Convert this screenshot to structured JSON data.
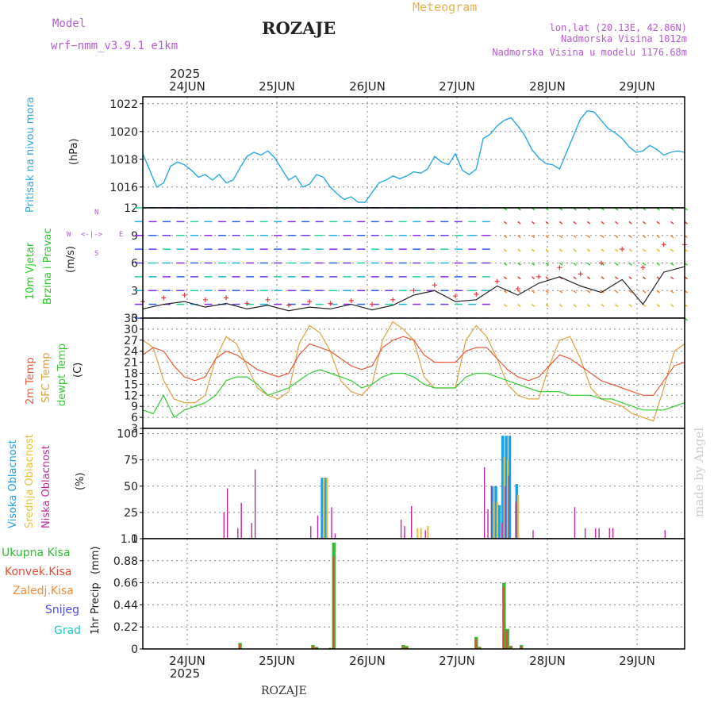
{
  "header": {
    "model_label": "Model",
    "model_name": "wrf−nmm_v3.9.1  e1km",
    "station": "ROZAJE",
    "product": "Meteogram",
    "coords": "lon,lat (20.13E, 42.86N)",
    "elevation": "Nadmorska Visina 1012m",
    "model_elevation": "Nadmorska Visina u modelu 1176.68m",
    "footer_station": "ROZAJE",
    "watermark": "made by Angel"
  },
  "colors": {
    "pressure": "#2aa7e6",
    "wind_speed": "#222222",
    "wind_gust": "#e83a3a",
    "temp_2m": "#e85a3a",
    "temp_sfc": "#e0a040",
    "dewpoint": "#33cc33",
    "cloud_high": "#1aa0e8",
    "cloud_mid": "#e8c040",
    "cloud_low": "#c02aa0",
    "precip_total": "#33bb33",
    "precip_conv": "#e84a3a",
    "precip_frz": "#f08a3a",
    "precip_snow": "#4a4ae8",
    "precip_grad": "#22c8c8",
    "label_purple": "#b45ad2"
  },
  "time_axis": {
    "year_top": "2025",
    "year_bottom": "2025",
    "days": [
      "24JUN",
      "25JUN",
      "26JUN",
      "27JUN",
      "28JUN",
      "29JUN"
    ],
    "start_hour": 0,
    "end_hour": 156
  },
  "chart_data": [
    {
      "type": "line",
      "title": "",
      "ylabel_1": "Pritisak na nivou mora",
      "ylabel_2": "(hPa)",
      "ylim": [
        1014.5,
        1022.5
      ],
      "yticks": [
        "1016",
        "1018",
        "1020",
        "1022"
      ],
      "grid": true,
      "series": [
        {
          "name": "Pritisak na nivou mora",
          "x": [
            0,
            2,
            4,
            6,
            8,
            10,
            12,
            14,
            16,
            18,
            20,
            22,
            24,
            26,
            28,
            30,
            32,
            34,
            36,
            38,
            40,
            42,
            44,
            46,
            48,
            50,
            52,
            54,
            56,
            58,
            60,
            62,
            64,
            66,
            68,
            70,
            72,
            74,
            76,
            78,
            80,
            82,
            84,
            86,
            88,
            90,
            92,
            94,
            96,
            98,
            100,
            102,
            104,
            106,
            108,
            110,
            112,
            114,
            116,
            118,
            120,
            122,
            124,
            126,
            128,
            130,
            132,
            134,
            136,
            138,
            140,
            142,
            144,
            146,
            148,
            150,
            152,
            154,
            156
          ],
          "values": [
            1018.4,
            1017.2,
            1016.0,
            1016.3,
            1017.5,
            1017.8,
            1017.6,
            1017.2,
            1016.7,
            1016.9,
            1016.5,
            1016.9,
            1016.3,
            1016.5,
            1017.4,
            1018.2,
            1018.5,
            1018.3,
            1018.6,
            1018.1,
            1017.3,
            1016.5,
            1016.8,
            1016.0,
            1016.2,
            1016.9,
            1016.7,
            1016.0,
            1015.5,
            1015.1,
            1015.3,
            1014.9,
            1014.9,
            1015.6,
            1016.3,
            1016.5,
            1016.8,
            1016.6,
            1016.8,
            1017.1,
            1017.0,
            1017.3,
            1018.2,
            1017.8,
            1017.6,
            1018.4,
            1017.2,
            1016.9,
            1017.3,
            1019.5,
            1019.8,
            1020.4,
            1020.8,
            1021.0,
            1020.4,
            1019.7,
            1018.7,
            1018.1,
            1017.7,
            1017.6,
            1017.3,
            1018.5,
            1019.7,
            1020.9,
            1021.5,
            1021.4,
            1020.8,
            1020.2,
            1019.9,
            1019.5,
            1018.9,
            1018.5,
            1018.6,
            1019.0,
            1018.7,
            1018.3,
            1018.5,
            1018.6,
            1018.5
          ]
        }
      ]
    },
    {
      "type": "line",
      "title": "",
      "ylabel_1": "10m Vjetar",
      "ylabel_2": "Brzina i Pravac",
      "ylabel_3": "(m/s)",
      "compass": {
        "n": "N",
        "s": "S",
        "e": "E",
        "w": "W",
        "rose": "<-|->"
      },
      "ylim": [
        0,
        12
      ],
      "yticks": [
        "0",
        "3",
        "6",
        "9",
        "12"
      ],
      "grid": true,
      "series": [
        {
          "name": "Brzina",
          "x": [
            0,
            6,
            12,
            18,
            24,
            30,
            36,
            42,
            48,
            54,
            60,
            66,
            72,
            78,
            84,
            90,
            96,
            102,
            108,
            114,
            120,
            126,
            132,
            138,
            144,
            150,
            156
          ],
          "values": [
            1.0,
            1.5,
            1.8,
            1.2,
            1.6,
            1.0,
            1.4,
            0.8,
            1.2,
            1.0,
            1.5,
            0.9,
            1.4,
            2.5,
            3.0,
            1.8,
            2.0,
            3.5,
            2.5,
            3.8,
            4.5,
            3.5,
            2.8,
            4.2,
            1.5,
            5.0,
            5.6
          ]
        },
        {
          "name": "Udari",
          "x": [
            0,
            6,
            12,
            18,
            24,
            30,
            36,
            42,
            48,
            54,
            60,
            66,
            72,
            78,
            84,
            90,
            96,
            102,
            108,
            114,
            120,
            126,
            132,
            138,
            144,
            150,
            156
          ],
          "values": [
            1.8,
            2.2,
            2.5,
            2.0,
            2.2,
            1.6,
            2.0,
            1.4,
            1.8,
            1.6,
            1.9,
            1.5,
            2.0,
            3.0,
            3.6,
            2.4,
            2.6,
            4.0,
            3.2,
            4.5,
            5.5,
            4.8,
            6.0,
            7.5,
            5.5,
            8.0,
            8.0
          ]
        }
      ]
    },
    {
      "type": "line",
      "title": "",
      "ylabel_1": "2m Temp",
      "ylabel_2": "SFC Temp",
      "ylabel_3": "dewpt Temp",
      "ylabel_4": "(C)",
      "ylim": [
        3,
        33
      ],
      "yticks": [
        "3",
        "6",
        "9",
        "12",
        "15",
        "18",
        "21",
        "24",
        "27",
        "30",
        "33"
      ],
      "grid": true,
      "series": [
        {
          "name": "2m Temp",
          "x": [
            0,
            3,
            6,
            9,
            12,
            15,
            18,
            21,
            24,
            27,
            30,
            33,
            36,
            39,
            42,
            45,
            48,
            51,
            54,
            57,
            60,
            63,
            66,
            69,
            72,
            75,
            78,
            81,
            84,
            87,
            90,
            93,
            96,
            99,
            102,
            105,
            108,
            111,
            114,
            117,
            120,
            123,
            126,
            129,
            132,
            135,
            138,
            141,
            144,
            147,
            150,
            153,
            156
          ],
          "values": [
            23,
            25,
            24,
            20,
            17,
            16,
            17,
            22,
            24,
            23,
            21,
            19,
            18,
            17,
            18,
            23,
            26,
            25,
            24,
            22,
            20,
            19,
            20,
            25,
            27,
            28,
            27,
            23,
            21,
            21,
            21,
            24,
            25,
            25,
            22,
            19,
            17,
            16,
            17,
            20,
            23,
            22,
            20,
            18,
            16,
            15,
            14,
            13,
            12,
            12,
            16,
            20,
            21
          ]
        },
        {
          "name": "SFC Temp",
          "x": [
            0,
            3,
            6,
            9,
            12,
            15,
            18,
            21,
            24,
            27,
            30,
            33,
            36,
            39,
            42,
            45,
            48,
            51,
            54,
            57,
            60,
            63,
            66,
            69,
            72,
            75,
            78,
            81,
            84,
            87,
            90,
            93,
            96,
            99,
            102,
            105,
            108,
            111,
            114,
            117,
            120,
            123,
            126,
            129,
            132,
            135,
            138,
            141,
            144,
            147,
            150,
            153,
            156
          ],
          "values": [
            27,
            25,
            16,
            11,
            10,
            10,
            12,
            22,
            28,
            26,
            20,
            14,
            12,
            11,
            13,
            26,
            31,
            29,
            24,
            16,
            13,
            12,
            15,
            27,
            32,
            30,
            27,
            17,
            14,
            14,
            14,
            27,
            31,
            28,
            22,
            15,
            12,
            11,
            11,
            20,
            27,
            28,
            22,
            14,
            11,
            10,
            9,
            7,
            6,
            5,
            14,
            24,
            26
          ]
        },
        {
          "name": "dewpt Temp",
          "x": [
            0,
            3,
            6,
            9,
            12,
            15,
            18,
            21,
            24,
            27,
            30,
            33,
            36,
            39,
            42,
            45,
            48,
            51,
            54,
            57,
            60,
            63,
            66,
            69,
            72,
            75,
            78,
            81,
            84,
            87,
            90,
            93,
            96,
            99,
            102,
            105,
            108,
            111,
            114,
            117,
            120,
            123,
            126,
            129,
            132,
            135,
            138,
            141,
            144,
            147,
            150,
            153,
            156
          ],
          "values": [
            8,
            7,
            12,
            6,
            8,
            9,
            10,
            12,
            16,
            17,
            17,
            15,
            12,
            13,
            14,
            16,
            18,
            19,
            18,
            17,
            16,
            14,
            15,
            17,
            18,
            18,
            17,
            15,
            14,
            14,
            14,
            17,
            18,
            18,
            17,
            16,
            15,
            14,
            13,
            13,
            13,
            12,
            12,
            12,
            11,
            11,
            10,
            9,
            8,
            8,
            8,
            9,
            10
          ]
        }
      ]
    },
    {
      "type": "bar",
      "title": "",
      "ylabel_1": "Visoka Oblacnost",
      "ylabel_2": "Srednja Oblacnost",
      "ylabel_3": "Niska  Oblacnost",
      "ylabel_4": "(%)",
      "ylim": [
        0,
        105
      ],
      "yticks": [
        "0",
        "25",
        "50",
        "75",
        "100"
      ],
      "grid": true,
      "series": [
        {
          "name": "Visoka Oblacnost",
          "x": [
            52,
            53,
            101,
            102,
            103,
            104,
            105,
            106,
            108
          ],
          "values": [
            58,
            58,
            50,
            50,
            32,
            98,
            98,
            98,
            52
          ]
        },
        {
          "name": "Srednja Oblacnost",
          "x": [
            52,
            53,
            79,
            80,
            82,
            101,
            102,
            104,
            105,
            108
          ],
          "values": [
            58,
            58,
            10,
            10,
            12,
            35,
            35,
            78,
            75,
            42
          ]
        },
        {
          "name": "Niska Oblacnost",
          "x": [
            23,
            24,
            27,
            28,
            31,
            32,
            48,
            50,
            54,
            55,
            74,
            75,
            77,
            81,
            98,
            99,
            100,
            103,
            104,
            105,
            107,
            112,
            124,
            127,
            130,
            131,
            134,
            135,
            150
          ],
          "values": [
            25,
            48,
            10,
            34,
            15,
            66,
            12,
            22,
            30,
            5,
            18,
            12,
            31,
            8,
            68,
            28,
            50,
            15,
            50,
            60,
            35,
            8,
            30,
            10,
            10,
            10,
            10,
            10,
            8
          ]
        }
      ]
    },
    {
      "type": "bar",
      "title": "",
      "ylabel_1": "1hr Precip",
      "ylabel_2": "(mm)",
      "legend": [
        "Ukupna  Kisa",
        "Konvek.Kisa",
        "Zaledj.Kisa",
        "Snijeg",
        "Grad"
      ],
      "ylim": [
        0,
        1.1
      ],
      "yticks": [
        "0",
        "0.22",
        "0.44",
        "0.66",
        "0.88",
        "1.1"
      ],
      "grid": true,
      "series": [
        {
          "name": "Ukupna  Kisa",
          "x": [
            28,
            49,
            50,
            54,
            55,
            75,
            76,
            96,
            97,
            104,
            105,
            106,
            109
          ],
          "values": [
            0.06,
            0.04,
            0.02,
            0.01,
            1.06,
            0.04,
            0.03,
            0.12,
            0.02,
            0.66,
            0.2,
            0.03,
            0.04
          ]
        },
        {
          "name": "Konvek.Kisa",
          "x": [
            28,
            49,
            50,
            54,
            55,
            75,
            76,
            96,
            97,
            104,
            105,
            106,
            109
          ],
          "values": [
            0.05,
            0.03,
            0.02,
            0.01,
            0.92,
            0.03,
            0.02,
            0.1,
            0.02,
            0.62,
            0.18,
            0.03,
            0.03
          ]
        }
      ]
    }
  ]
}
